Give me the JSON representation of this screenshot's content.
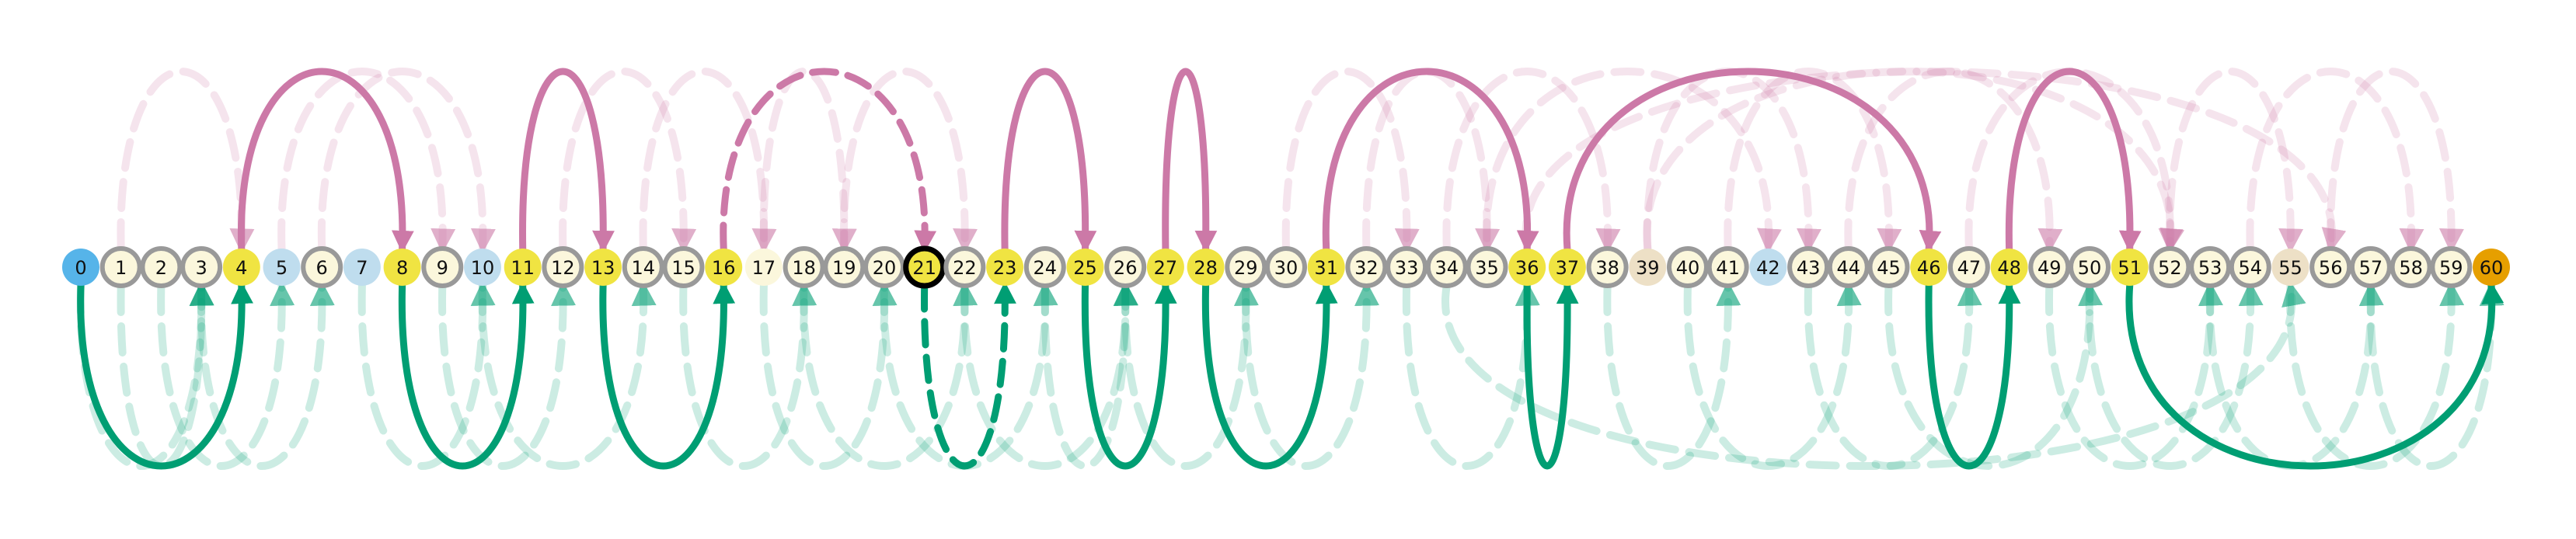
{
  "diagram": {
    "type": "number-line-jump-graph",
    "title": "",
    "start": 0,
    "end": 60,
    "current": 21,
    "colors": {
      "forward": "#009E73",
      "backward": "#CC79A7",
      "start": "#56B4E9",
      "end": "#E69F00",
      "path_node": "#F0E442",
      "blue_node": "#BFDDEE",
      "beige_node": "#EDE0C6",
      "plain_node": "#FBF7DC",
      "ring": "#999999",
      "current_ring": "#000000"
    },
    "nodes": [
      {
        "label": "0",
        "kind": "start"
      },
      {
        "label": "1",
        "kind": "ringed"
      },
      {
        "label": "2",
        "kind": "ringed"
      },
      {
        "label": "3",
        "kind": "ringed"
      },
      {
        "label": "4",
        "kind": "path"
      },
      {
        "label": "5",
        "kind": "blue"
      },
      {
        "label": "6",
        "kind": "ringed"
      },
      {
        "label": "7",
        "kind": "blue"
      },
      {
        "label": "8",
        "kind": "path"
      },
      {
        "label": "9",
        "kind": "ringed"
      },
      {
        "label": "10",
        "kind": "blue"
      },
      {
        "label": "11",
        "kind": "path"
      },
      {
        "label": "12",
        "kind": "ringed"
      },
      {
        "label": "13",
        "kind": "path"
      },
      {
        "label": "14",
        "kind": "ringed"
      },
      {
        "label": "15",
        "kind": "ringed"
      },
      {
        "label": "16",
        "kind": "path"
      },
      {
        "label": "17",
        "kind": "plain"
      },
      {
        "label": "18",
        "kind": "ringed"
      },
      {
        "label": "19",
        "kind": "ringed"
      },
      {
        "label": "20",
        "kind": "ringed"
      },
      {
        "label": "21",
        "kind": "current"
      },
      {
        "label": "22",
        "kind": "ringed"
      },
      {
        "label": "23",
        "kind": "path"
      },
      {
        "label": "24",
        "kind": "ringed"
      },
      {
        "label": "25",
        "kind": "path"
      },
      {
        "label": "26",
        "kind": "ringed"
      },
      {
        "label": "27",
        "kind": "path"
      },
      {
        "label": "28",
        "kind": "path"
      },
      {
        "label": "29",
        "kind": "ringed"
      },
      {
        "label": "30",
        "kind": "ringed"
      },
      {
        "label": "31",
        "kind": "path"
      },
      {
        "label": "32",
        "kind": "ringed"
      },
      {
        "label": "33",
        "kind": "ringed"
      },
      {
        "label": "34",
        "kind": "ringed"
      },
      {
        "label": "35",
        "kind": "ringed"
      },
      {
        "label": "36",
        "kind": "path"
      },
      {
        "label": "37",
        "kind": "path"
      },
      {
        "label": "38",
        "kind": "ringed"
      },
      {
        "label": "39",
        "kind": "beige"
      },
      {
        "label": "40",
        "kind": "ringed"
      },
      {
        "label": "41",
        "kind": "ringed"
      },
      {
        "label": "42",
        "kind": "blue"
      },
      {
        "label": "43",
        "kind": "ringed"
      },
      {
        "label": "44",
        "kind": "ringed"
      },
      {
        "label": "45",
        "kind": "ringed"
      },
      {
        "label": "46",
        "kind": "path"
      },
      {
        "label": "47",
        "kind": "ringed"
      },
      {
        "label": "48",
        "kind": "path"
      },
      {
        "label": "49",
        "kind": "ringed"
      },
      {
        "label": "50",
        "kind": "ringed"
      },
      {
        "label": "51",
        "kind": "path"
      },
      {
        "label": "52",
        "kind": "ringed"
      },
      {
        "label": "53",
        "kind": "ringed"
      },
      {
        "label": "54",
        "kind": "ringed"
      },
      {
        "label": "55",
        "kind": "beige"
      },
      {
        "label": "56",
        "kind": "ringed"
      },
      {
        "label": "57",
        "kind": "ringed"
      },
      {
        "label": "58",
        "kind": "ringed"
      },
      {
        "label": "59",
        "kind": "ringed"
      },
      {
        "label": "60",
        "kind": "end"
      }
    ],
    "main_path": [
      {
        "from": 0,
        "to": 4,
        "dir": "forward",
        "style": "solid"
      },
      {
        "from": 4,
        "to": 8,
        "dir": "backward",
        "style": "solid"
      },
      {
        "from": 8,
        "to": 11,
        "dir": "forward",
        "style": "solid"
      },
      {
        "from": 11,
        "to": 13,
        "dir": "backward",
        "style": "solid"
      },
      {
        "from": 13,
        "to": 16,
        "dir": "forward",
        "style": "solid"
      },
      {
        "from": 16,
        "to": 21,
        "dir": "backward",
        "style": "dashed"
      },
      {
        "from": 21,
        "to": 23,
        "dir": "forward",
        "style": "dashed"
      },
      {
        "from": 23,
        "to": 25,
        "dir": "backward",
        "style": "solid"
      },
      {
        "from": 25,
        "to": 27,
        "dir": "forward",
        "style": "solid"
      },
      {
        "from": 27,
        "to": 28,
        "dir": "backward",
        "style": "solid"
      },
      {
        "from": 28,
        "to": 31,
        "dir": "forward",
        "style": "solid"
      },
      {
        "from": 31,
        "to": 36,
        "dir": "backward",
        "style": "solid"
      },
      {
        "from": 36,
        "to": 37,
        "dir": "forward",
        "style": "solid"
      },
      {
        "from": 37,
        "to": 46,
        "dir": "backward",
        "style": "solid"
      },
      {
        "from": 46,
        "to": 48,
        "dir": "forward",
        "style": "solid"
      },
      {
        "from": 48,
        "to": 51,
        "dir": "backward",
        "style": "solid"
      },
      {
        "from": 51,
        "to": 60,
        "dir": "forward",
        "style": "solid"
      }
    ],
    "faint_moves": [
      {
        "from": 0,
        "to": 3,
        "dir": "forward"
      },
      {
        "from": 1,
        "to": 3,
        "dir": "forward"
      },
      {
        "from": 2,
        "to": 5,
        "dir": "forward"
      },
      {
        "from": 3,
        "to": 6,
        "dir": "forward"
      },
      {
        "from": 1,
        "to": 4,
        "dir": "backward"
      },
      {
        "from": 5,
        "to": 9,
        "dir": "backward"
      },
      {
        "from": 6,
        "to": 10,
        "dir": "backward"
      },
      {
        "from": 7,
        "to": 10,
        "dir": "forward"
      },
      {
        "from": 9,
        "to": 12,
        "dir": "forward"
      },
      {
        "from": 10,
        "to": 14,
        "dir": "forward"
      },
      {
        "from": 12,
        "to": 15,
        "dir": "backward"
      },
      {
        "from": 14,
        "to": 17,
        "dir": "backward"
      },
      {
        "from": 15,
        "to": 18,
        "dir": "forward"
      },
      {
        "from": 17,
        "to": 19,
        "dir": "backward"
      },
      {
        "from": 17,
        "to": 20,
        "dir": "forward"
      },
      {
        "from": 18,
        "to": 22,
        "dir": "forward"
      },
      {
        "from": 19,
        "to": 22,
        "dir": "backward"
      },
      {
        "from": 20,
        "to": 24,
        "dir": "forward"
      },
      {
        "from": 22,
        "to": 26,
        "dir": "forward"
      },
      {
        "from": 24,
        "to": 26,
        "dir": "forward"
      },
      {
        "from": 26,
        "to": 29,
        "dir": "forward"
      },
      {
        "from": 29,
        "to": 32,
        "dir": "forward"
      },
      {
        "from": 30,
        "to": 33,
        "dir": "backward"
      },
      {
        "from": 32,
        "to": 35,
        "dir": "backward"
      },
      {
        "from": 33,
        "to": 36,
        "dir": "forward"
      },
      {
        "from": 34,
        "to": 38,
        "dir": "backward"
      },
      {
        "from": 35,
        "to": 42,
        "dir": "backward"
      },
      {
        "from": 38,
        "to": 41,
        "dir": "forward"
      },
      {
        "from": 39,
        "to": 43,
        "dir": "backward"
      },
      {
        "from": 40,
        "to": 44,
        "dir": "forward"
      },
      {
        "from": 41,
        "to": 45,
        "dir": "backward"
      },
      {
        "from": 43,
        "to": 47,
        "dir": "forward"
      },
      {
        "from": 44,
        "to": 49,
        "dir": "backward"
      },
      {
        "from": 45,
        "to": 50,
        "dir": "forward"
      },
      {
        "from": 47,
        "to": 52,
        "dir": "backward"
      },
      {
        "from": 49,
        "to": 53,
        "dir": "forward"
      },
      {
        "from": 50,
        "to": 54,
        "dir": "forward"
      },
      {
        "from": 52,
        "to": 55,
        "dir": "backward"
      },
      {
        "from": 53,
        "to": 57,
        "dir": "forward"
      },
      {
        "from": 54,
        "to": 58,
        "dir": "backward"
      },
      {
        "from": 55,
        "to": 59,
        "dir": "forward"
      },
      {
        "from": 56,
        "to": 59,
        "dir": "backward"
      },
      {
        "from": 57,
        "to": 60,
        "dir": "forward"
      },
      {
        "from": 36,
        "to": 56,
        "dir": "backward"
      },
      {
        "from": 34,
        "to": 55,
        "dir": "forward"
      },
      {
        "from": 39,
        "to": 52,
        "dir": "backward"
      }
    ]
  }
}
